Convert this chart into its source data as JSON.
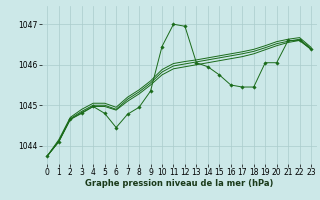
{
  "bg_color": "#cce8e8",
  "grid_color": "#aacccc",
  "line_color": "#1a6b1a",
  "marker_color": "#1a6b1a",
  "title": "Graphe pression niveau de la mer (hPa)",
  "xlim": [
    -0.5,
    23.5
  ],
  "ylim": [
    1043.55,
    1047.45
  ],
  "yticks": [
    1044,
    1045,
    1046,
    1047
  ],
  "xticks": [
    0,
    1,
    2,
    3,
    4,
    5,
    6,
    7,
    8,
    9,
    10,
    11,
    12,
    13,
    14,
    15,
    16,
    17,
    18,
    19,
    20,
    21,
    22,
    23
  ],
  "y_zigzag": [
    1043.75,
    1044.1,
    1044.65,
    1044.8,
    1044.97,
    1044.8,
    1044.45,
    1044.78,
    1044.95,
    1045.35,
    1046.45,
    1047.0,
    1046.95,
    1046.05,
    1045.95,
    1045.75,
    1045.5,
    1045.45,
    1045.45,
    1046.05,
    1046.05,
    1046.6,
    1046.6,
    1046.38
  ],
  "y_smooth1": [
    1043.75,
    1044.1,
    1044.65,
    1044.82,
    1044.97,
    1044.97,
    1044.88,
    1045.1,
    1045.28,
    1045.5,
    1045.75,
    1045.9,
    1045.95,
    1046.0,
    1046.05,
    1046.1,
    1046.15,
    1046.2,
    1046.27,
    1046.37,
    1046.47,
    1046.55,
    1046.6,
    1046.38
  ],
  "y_smooth2": [
    1043.75,
    1044.12,
    1044.67,
    1044.85,
    1045.0,
    1045.0,
    1044.9,
    1045.15,
    1045.33,
    1045.55,
    1045.82,
    1045.97,
    1046.02,
    1046.07,
    1046.12,
    1046.17,
    1046.22,
    1046.27,
    1046.33,
    1046.42,
    1046.52,
    1046.58,
    1046.63,
    1046.4
  ],
  "y_smooth3": [
    1043.75,
    1044.15,
    1044.7,
    1044.9,
    1045.05,
    1045.05,
    1044.95,
    1045.2,
    1045.38,
    1045.6,
    1045.88,
    1046.03,
    1046.08,
    1046.12,
    1046.17,
    1046.22,
    1046.27,
    1046.32,
    1046.38,
    1046.47,
    1046.57,
    1046.63,
    1046.67,
    1046.43
  ]
}
